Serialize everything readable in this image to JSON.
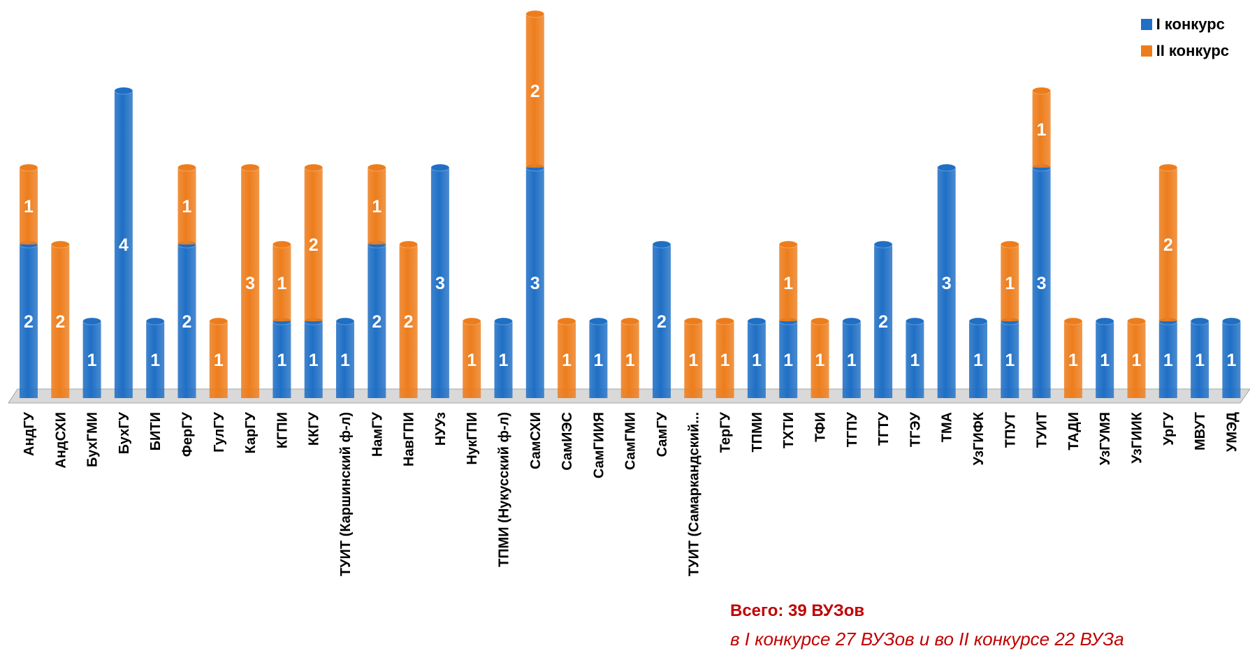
{
  "chart_data": {
    "type": "bar",
    "stacked": true,
    "categories": [
      "АндГУ",
      "АндСХИ",
      "БухГМИ",
      "БухГУ",
      "БИТИ",
      "ФерГУ",
      "ГулГУ",
      "КарГУ",
      "КГПИ",
      "ККГУ",
      "ТУИТ (Каршинский ф-л)",
      "НамГУ",
      "НавГПИ",
      "НУУз",
      "НукГПИ",
      "ТПМИ (Нукусский ф-л)",
      "СамСХИ",
      "СамИЭС",
      "СамГИИЯ",
      "СамГМИ",
      "СамГУ",
      "ТУИТ (Самаркандский...",
      "ТерГУ",
      "ТПМИ",
      "ТХТИ",
      "ТФИ",
      "ТГПУ",
      "ТГТУ",
      "ТГЭУ",
      "ТМА",
      "УзГИФК",
      "ТПУТ",
      "ТУИТ",
      "ТАДИ",
      "УзГУМЯ",
      "УзГИИК",
      "УрГУ",
      "МВУТ",
      "УМЭД"
    ],
    "series": [
      {
        "name": "I конкурс",
        "color": "#1f6fc5",
        "values": [
          2,
          0,
          1,
          4,
          1,
          2,
          0,
          0,
          1,
          1,
          1,
          2,
          0,
          3,
          0,
          1,
          3,
          0,
          1,
          0,
          2,
          0,
          0,
          1,
          1,
          0,
          1,
          2,
          1,
          3,
          1,
          1,
          3,
          0,
          1,
          0,
          1,
          1,
          1
        ]
      },
      {
        "name": "II конкурс",
        "color": "#ed7d1c",
        "values": [
          1,
          2,
          0,
          0,
          0,
          1,
          1,
          3,
          1,
          2,
          0,
          1,
          2,
          0,
          1,
          0,
          2,
          1,
          0,
          1,
          0,
          1,
          1,
          0,
          1,
          1,
          0,
          0,
          0,
          0,
          0,
          1,
          1,
          1,
          0,
          1,
          2,
          0,
          0
        ]
      }
    ],
    "ylim": [
      0,
      5
    ],
    "grid": false,
    "legend_position": "top-right"
  },
  "note": {
    "total": "Всего: 39 ВУЗов",
    "detail": "в I конкурсе 27 ВУЗов и во II конкурсе 22 ВУЗа"
  }
}
